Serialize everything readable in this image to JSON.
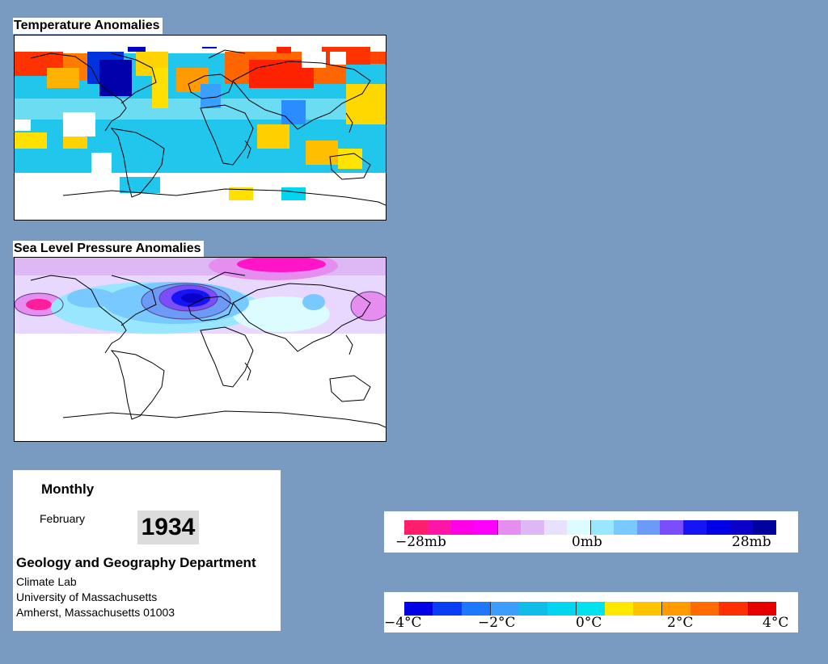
{
  "panels": {
    "temperature": {
      "title": "Temperature Anomalies"
    },
    "pressure": {
      "title": "Sea Level Pressure Anomalies"
    }
  },
  "info": {
    "frequency": "Monthly",
    "month": "February",
    "year": "1934",
    "department": "Geology and Geography Department",
    "address_lines": [
      "Climate Lab",
      "University of Massachusetts",
      "Amherst, Massachusetts 01003"
    ]
  },
  "pressure_legend": {
    "labels": [
      "−28mb",
      "0mb",
      "28mb"
    ],
    "colors": [
      "#ff1d6c",
      "#ff14a8",
      "#ff00e6",
      "#ff00ff",
      "#e58ef0",
      "#deb7f5",
      "#e8e0ff",
      "#ddfcff",
      "#99e7ff",
      "#77c9ff",
      "#6b9bf7",
      "#7c4dff",
      "#1414f5",
      "#0000e6",
      "#0a00c9",
      "#00009e"
    ]
  },
  "temperature_legend": {
    "labels": [
      "−4°C",
      "−2°C",
      "0°C",
      "2°C",
      "4°C"
    ],
    "colors": [
      "#0000e6",
      "#0a3ef5",
      "#1e78ff",
      "#3c9dff",
      "#10bde8",
      "#00d6ef",
      "#00e3ee",
      "#ffe800",
      "#ffc300",
      "#ff9a00",
      "#ff6b00",
      "#ff3000",
      "#e80000"
    ]
  }
}
